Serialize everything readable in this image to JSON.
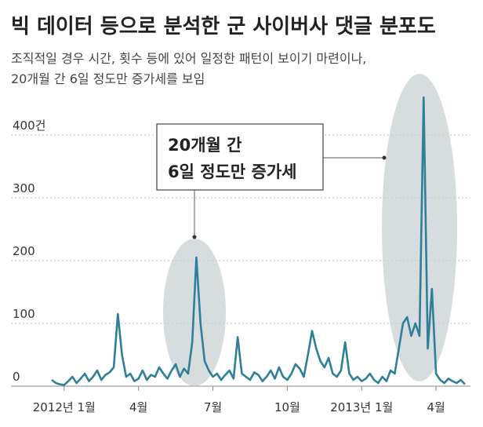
{
  "chart_data": {
    "type": "line",
    "title": "빅 데이터 등으로 분석한 군 사이버사 댓글 분포도",
    "subtitle": [
      "조직적일 경우 시간, 횟수 등에 있어 일정한 패턴이 보이기 마련이나,",
      "20개월 간 6일 정도만 증가세를 보임"
    ],
    "annotation": [
      "20개월 간",
      "6일 정도만 증가세"
    ],
    "categories": [
      null,
      null,
      null,
      "2012년 1월",
      null,
      null,
      null,
      null,
      null,
      null,
      null,
      null,
      null,
      null,
      null,
      null,
      null,
      null,
      null,
      null,
      null,
      "4월",
      null,
      null,
      null,
      null,
      null,
      null,
      null,
      null,
      null,
      null,
      null,
      null,
      null,
      null,
      null,
      null,
      null,
      "7월",
      null,
      null,
      null,
      null,
      null,
      null,
      null,
      null,
      null,
      null,
      null,
      null,
      null,
      null,
      null,
      null,
      null,
      "10월",
      null,
      null,
      null,
      null,
      null,
      null,
      null,
      null,
      null,
      null,
      null,
      null,
      null,
      null,
      null,
      null,
      null,
      "2013년 1월",
      null,
      null,
      null,
      null,
      null,
      null,
      null,
      null,
      null,
      null,
      null,
      null,
      null,
      null,
      null,
      null,
      null,
      "4월",
      null,
      null,
      null,
      null,
      null,
      null,
      null
    ],
    "series": [
      {
        "name": "댓글",
        "color": "#2f7f98",
        "values": [
          10,
          5,
          3,
          2,
          8,
          15,
          5,
          12,
          20,
          8,
          15,
          25,
          10,
          18,
          22,
          30,
          115,
          50,
          15,
          20,
          8,
          12,
          25,
          10,
          18,
          15,
          30,
          20,
          12,
          25,
          35,
          15,
          28,
          20,
          70,
          205,
          100,
          40,
          25,
          15,
          20,
          10,
          18,
          25,
          12,
          78,
          20,
          15,
          10,
          22,
          18,
          8,
          15,
          25,
          12,
          30,
          15,
          10,
          20,
          35,
          28,
          15,
          50,
          88,
          60,
          40,
          30,
          45,
          20,
          15,
          25,
          70,
          20,
          10,
          15,
          8,
          12,
          20,
          10,
          5,
          15,
          8,
          25,
          20,
          60,
          100,
          110,
          80,
          100,
          80,
          460,
          60,
          155,
          20,
          10,
          5,
          12,
          8,
          5,
          10,
          3
        ]
      }
    ],
    "ylim": [
      0,
      470
    ],
    "yticks": [
      0,
      100,
      200,
      300,
      {
        "value": 400,
        "label": "400건"
      }
    ],
    "grid": true
  }
}
